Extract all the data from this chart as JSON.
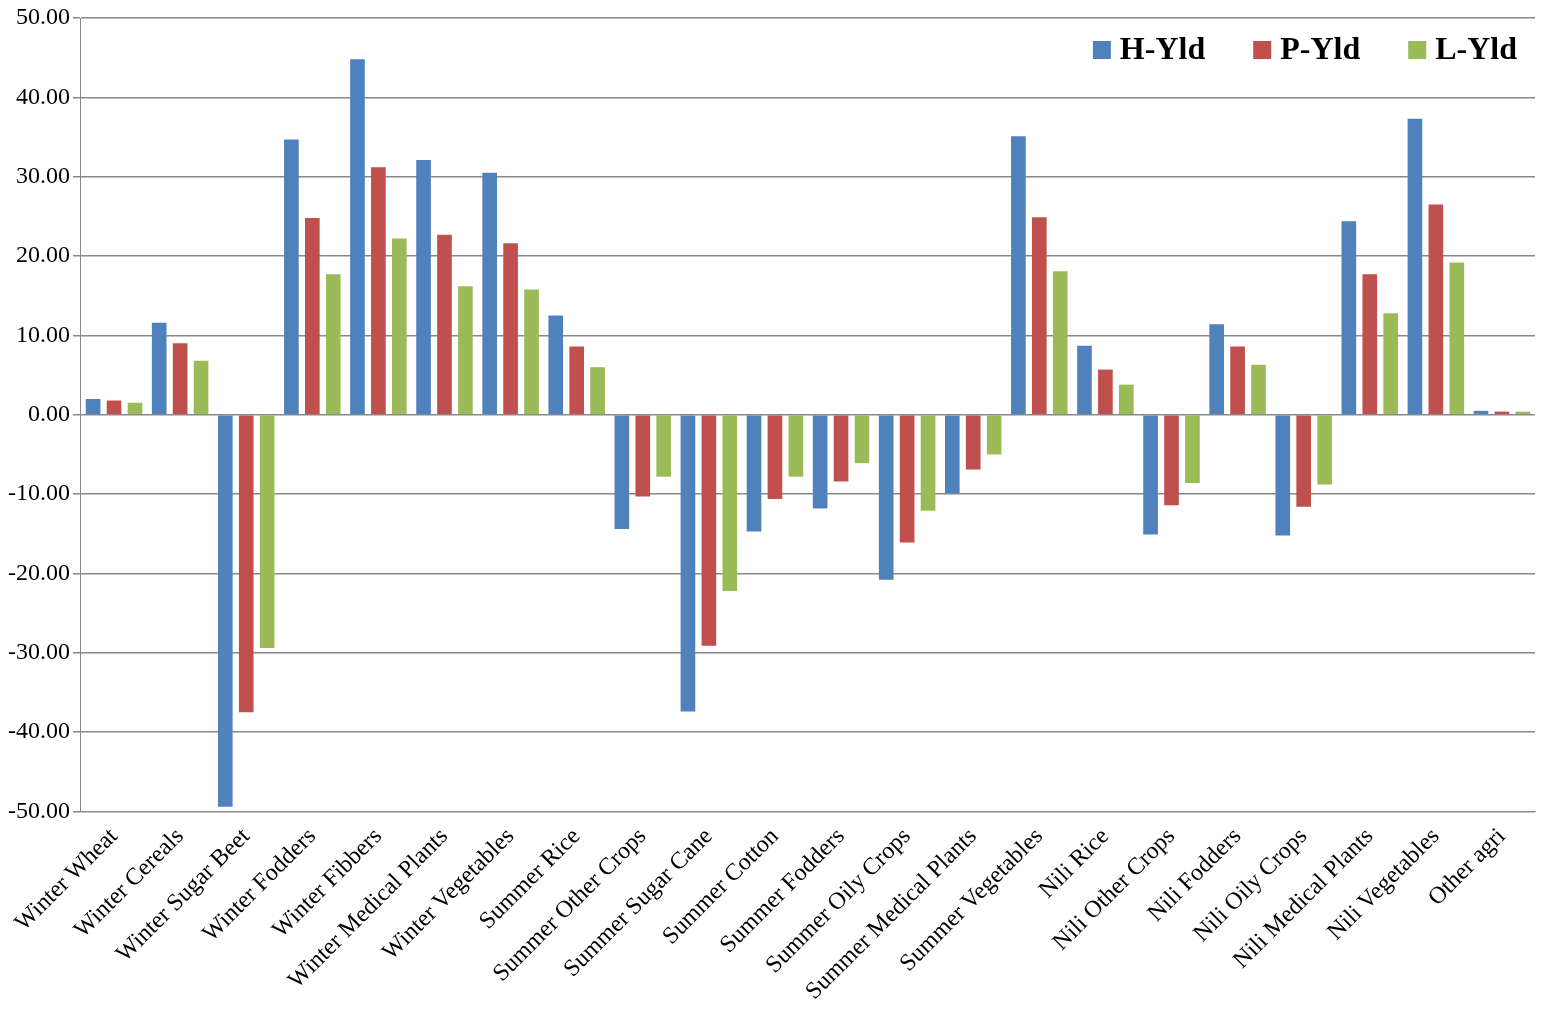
{
  "chart_data": {
    "type": "bar",
    "categories": [
      "Winter Wheat",
      "Winter Cereals",
      "Winter Sugar Beet",
      "Winter Fodders",
      "Winter Fibbers",
      "Winter Medical Plants",
      "Winter Vegetables",
      "Summer Rice",
      "Summer Other Crops",
      "Summer Sugar Cane",
      "Summer Cotton",
      "Summer Fodders",
      "Summer Oily Crops",
      "Summer Medical Plants",
      "Summer Vegetables",
      "Nili Rice",
      "Nili Other Crops",
      "Nili Fodders",
      "Nili Oily Crops",
      "Nili Medical Plants",
      "Nili Vegetables",
      "Other agri"
    ],
    "series": [
      {
        "name": "H-Yld",
        "color": "#4f81bd",
        "values": [
          2.0,
          11.6,
          -49.4,
          34.7,
          44.8,
          32.1,
          30.5,
          12.5,
          -14.4,
          -37.4,
          -14.7,
          -11.8,
          -20.8,
          -9.9,
          35.1,
          8.7,
          -15.1,
          11.4,
          -15.2,
          24.4,
          37.3,
          0.5
        ]
      },
      {
        "name": "P-Yld",
        "color": "#c0504d",
        "values": [
          1.8,
          9.0,
          -37.5,
          24.8,
          31.2,
          22.7,
          21.6,
          8.6,
          -10.3,
          -29.1,
          -10.6,
          -8.4,
          -16.1,
          -6.9,
          24.9,
          5.7,
          -11.4,
          8.6,
          -11.6,
          17.7,
          26.5,
          0.4
        ]
      },
      {
        "name": "L-Yld",
        "color": "#9bbb59",
        "values": [
          1.5,
          6.8,
          -29.4,
          17.7,
          22.2,
          16.2,
          15.8,
          6.0,
          -7.8,
          -22.2,
          -7.8,
          -6.1,
          -12.1,
          -5.0,
          18.1,
          3.8,
          -8.6,
          6.3,
          -8.8,
          12.8,
          19.2,
          0.4
        ]
      }
    ],
    "ylim": [
      -50,
      50
    ],
    "yticks": [
      {
        "value": -50,
        "label": "-50.00"
      },
      {
        "value": -40,
        "label": "-40.00"
      },
      {
        "value": -30,
        "label": "-30.00"
      },
      {
        "value": -20,
        "label": "-20.00"
      },
      {
        "value": -10,
        "label": "-10.00"
      },
      {
        "value": 0,
        "label": "0.00"
      },
      {
        "value": 10,
        "label": "10.00"
      },
      {
        "value": 20,
        "label": "20.00"
      },
      {
        "value": 30,
        "label": "30.00"
      },
      {
        "value": 40,
        "label": "40.00"
      },
      {
        "value": 50,
        "label": "50.00"
      }
    ],
    "grid": "y",
    "legend": "top right"
  }
}
